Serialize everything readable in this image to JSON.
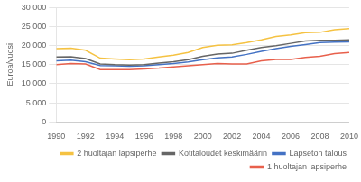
{
  "chart_data": {
    "type": "line",
    "ylabel": "Euroa/vuosi",
    "x": [
      1990,
      1991,
      1992,
      1993,
      1994,
      1995,
      1996,
      1997,
      1998,
      1999,
      2000,
      2001,
      2002,
      2003,
      2004,
      2005,
      2006,
      2007,
      2008,
      2009,
      2010
    ],
    "series": [
      {
        "name": "2 huoltajan lapsiperhe",
        "color": "#f5c242",
        "values": [
          19200,
          19300,
          18800,
          16700,
          16500,
          16300,
          16500,
          17000,
          17500,
          18200,
          19500,
          20100,
          20200,
          20800,
          21500,
          22400,
          22800,
          23400,
          23500,
          24200,
          24500
        ]
      },
      {
        "name": "Kotitaloudet keskimäärin",
        "color": "#666666",
        "values": [
          17000,
          17100,
          16600,
          15200,
          15000,
          14900,
          15000,
          15400,
          15800,
          16300,
          17200,
          17800,
          18000,
          18800,
          19500,
          20000,
          20600,
          21200,
          21400,
          21400,
          21500
        ]
      },
      {
        "name": "Lapseton talous",
        "color": "#4472c4",
        "values": [
          16000,
          16200,
          15800,
          14800,
          14700,
          14600,
          14700,
          15000,
          15300,
          15700,
          16300,
          16800,
          17000,
          17700,
          18500,
          19200,
          19800,
          20300,
          20800,
          20900,
          21000
        ]
      },
      {
        "name": "1 huoltajan lapsiperhe",
        "color": "#e8604c",
        "values": [
          15000,
          15300,
          15200,
          13700,
          13700,
          13700,
          13900,
          14100,
          14400,
          14700,
          15000,
          15300,
          15200,
          15200,
          16000,
          16400,
          16400,
          16900,
          17200,
          17900,
          18200
        ]
      }
    ],
    "xlim": [
      1990,
      2010
    ],
    "xticks": [
      1990,
      1992,
      1994,
      1996,
      1998,
      2000,
      2002,
      2004,
      2006,
      2008,
      2010
    ],
    "ylim": [
      0,
      30000
    ],
    "yticks": [
      0,
      {
        "value": 5000,
        "label": "5 000"
      },
      {
        "value": 10000,
        "label": "10 000"
      },
      {
        "value": 15000,
        "label": "15 000"
      },
      {
        "value": 20000,
        "label": "20 000"
      },
      {
        "value": 25000,
        "label": "25 000"
      },
      {
        "value": 30000,
        "label": "30 000"
      }
    ],
    "grid": "y",
    "legend": "lower right"
  }
}
